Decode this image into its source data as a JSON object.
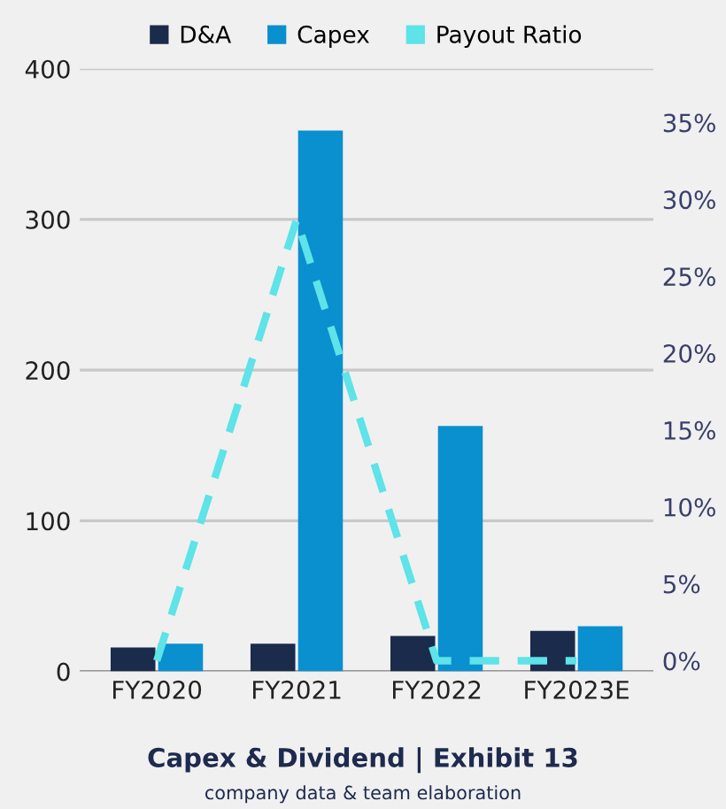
{
  "chart_data": {
    "type": "bar",
    "title": "Capex & Dividend | Exhibit 13",
    "annotations": [
      "company data & team elaboration"
    ],
    "categories": [
      "FY2020",
      "FY2021",
      "FY2022",
      "FY2023E"
    ],
    "series": [
      {
        "name": "D&A",
        "color": "#1a2b4c",
        "values": [
          16,
          18.5,
          23.5,
          27
        ]
      },
      {
        "name": "Capex",
        "color": "#0a8fcf",
        "values": [
          18.5,
          359,
          163,
          30
        ]
      },
      {
        "name": "Payout Ratio",
        "type": "line",
        "axis": "y2",
        "color": "#5de3e8",
        "line_style": "dashed",
        "values": [
          0,
          28.7,
          0,
          0
        ]
      }
    ],
    "ylim": [
      0,
      400
    ],
    "yticks": [
      0,
      100,
      200,
      300,
      400
    ],
    "y2lim": [
      -0.7,
      38.5
    ],
    "y2ticks": [
      {
        "value": 0,
        "label": "0%"
      },
      {
        "value": 5,
        "label": "5%"
      },
      {
        "value": 10,
        "label": "10%"
      },
      {
        "value": 15,
        "label": "15%"
      },
      {
        "value": 20,
        "label": "20%"
      },
      {
        "value": 25,
        "label": "25%"
      },
      {
        "value": 30,
        "label": "30%"
      },
      {
        "value": 35,
        "label": "35%"
      }
    ],
    "grid": "y",
    "legend": "top"
  }
}
